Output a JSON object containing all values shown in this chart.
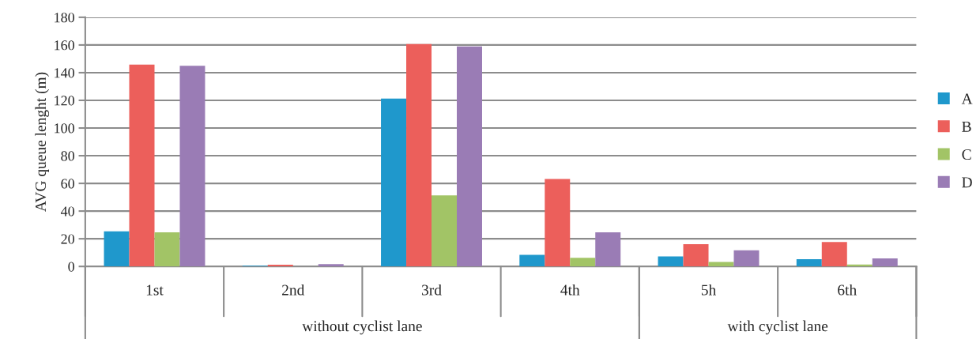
{
  "chart_data": {
    "type": "bar",
    "ylabel": "AVG queue lenght (m)",
    "categories": [
      "1st",
      "2nd",
      "3rd",
      "4th",
      "5h",
      "6th"
    ],
    "series": [
      {
        "name": "A",
        "color": "#1f98cc",
        "values": [
          25.3,
          0.6,
          121.3,
          8.4,
          7.2,
          5.2
        ]
      },
      {
        "name": "B",
        "color": "#ec5f5b",
        "values": [
          145.8,
          1.3,
          160.7,
          63.2,
          16.1,
          17.7
        ]
      },
      {
        "name": "C",
        "color": "#a2c466",
        "values": [
          24.7,
          null,
          51.3,
          6.3,
          3.3,
          1.4
        ]
      },
      {
        "name": "D",
        "color": "#9a7cb5",
        "values": [
          145,
          1.7,
          159,
          24.7,
          11.7,
          5.8
        ]
      }
    ],
    "ylim": [
      0,
      180
    ],
    "yticks": [
      0,
      20,
      40,
      60,
      80,
      100,
      120,
      140,
      160,
      180
    ],
    "grid": "y",
    "legend": "right",
    "annotations": [
      "without cyclist lane",
      "with cyclist lane"
    ]
  }
}
